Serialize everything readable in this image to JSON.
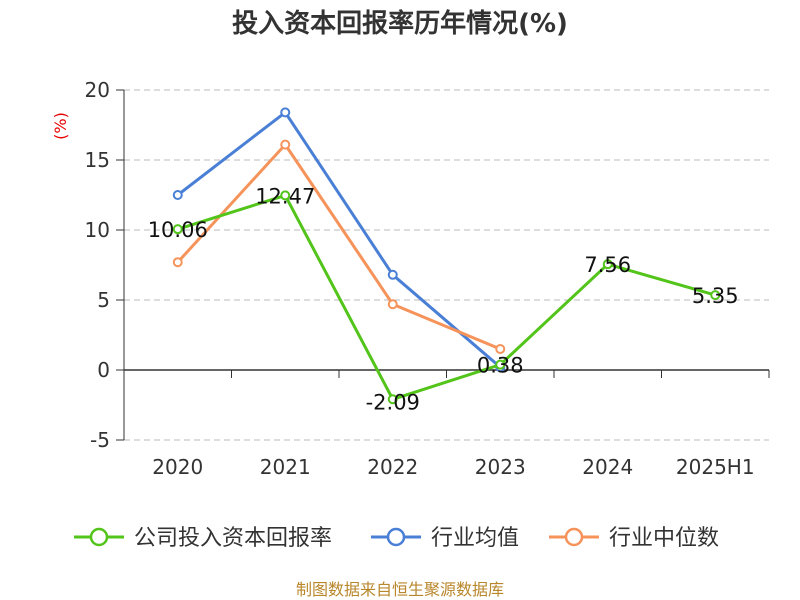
{
  "chart_data": {
    "type": "line",
    "title": "投入资本回报率历年情况(%)",
    "y_unit": "(%)",
    "categories": [
      "2020",
      "2021",
      "2022",
      "2023",
      "2024",
      "2025H1"
    ],
    "ylim": [
      -5,
      20
    ],
    "yticks": [
      -5,
      0,
      5,
      10,
      15,
      20
    ],
    "grid": true,
    "legend_position": "bottom",
    "series": [
      {
        "name": "公司投入资本回报率",
        "color": "#52c41a",
        "values": [
          10.06,
          12.47,
          -2.09,
          0.38,
          7.56,
          5.35
        ],
        "labels": true
      },
      {
        "name": "行业均值",
        "color": "#4a7fd6",
        "values": [
          12.5,
          18.4,
          6.8,
          0.2,
          null,
          null
        ],
        "labels": false
      },
      {
        "name": "行业中位数",
        "color": "#f5935a",
        "values": [
          7.7,
          16.1,
          4.7,
          1.5,
          null,
          null
        ],
        "labels": false
      }
    ],
    "source": "制图数据来自恒生聚源数据库"
  }
}
